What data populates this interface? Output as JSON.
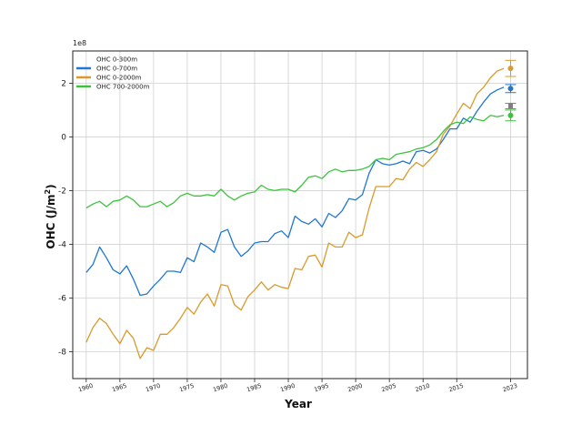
{
  "chart_data": {
    "type": "line",
    "title": "",
    "xlabel": "Year",
    "ylabel": "OHC (J/m²)",
    "ylabel_parts": {
      "main": "OHC (J/m",
      "sup": "2",
      "end": ")"
    },
    "y_multiplier": "1e8",
    "xlim": [
      1958,
      2025.5
    ],
    "ylim": [
      -9,
      3.2
    ],
    "x_ticks": [
      1960,
      1965,
      1970,
      1975,
      1980,
      1985,
      1990,
      1995,
      2000,
      2005,
      2010,
      2015,
      2023
    ],
    "y_ticks": [
      -8,
      -6,
      -4,
      -2,
      0,
      2
    ],
    "grid": true,
    "legend_position": "top-left",
    "series": [
      {
        "name": "OHC 0-300m",
        "color": "#7f7f7f",
        "x": [
          2023
        ],
        "y": [
          1.15
        ],
        "marker": {
          "x": 2023,
          "y": 1.15,
          "err": 0.1
        }
      },
      {
        "name": "OHC 0-700m",
        "color": "#1f77d0",
        "x": [
          1960,
          1961,
          1962,
          1963,
          1964,
          1965,
          1966,
          1967,
          1968,
          1969,
          1970,
          1971,
          1972,
          1973,
          1974,
          1975,
          1976,
          1977,
          1978,
          1979,
          1980,
          1981,
          1982,
          1983,
          1984,
          1985,
          1986,
          1987,
          1988,
          1989,
          1990,
          1991,
          1992,
          1993,
          1994,
          1995,
          1996,
          1997,
          1998,
          1999,
          2000,
          2001,
          2002,
          2003,
          2004,
          2005,
          2006,
          2007,
          2008,
          2009,
          2010,
          2011,
          2012,
          2013,
          2014,
          2015,
          2016,
          2017,
          2018,
          2019,
          2020,
          2021,
          2022
        ],
        "y": [
          -5.05,
          -4.75,
          -4.1,
          -4.5,
          -4.95,
          -5.1,
          -4.8,
          -5.3,
          -5.9,
          -5.85,
          -5.55,
          -5.3,
          -5.0,
          -5.0,
          -5.05,
          -4.5,
          -4.65,
          -3.95,
          -4.1,
          -4.3,
          -3.55,
          -3.45,
          -4.1,
          -4.45,
          -4.25,
          -3.95,
          -3.9,
          -3.9,
          -3.6,
          -3.5,
          -3.75,
          -2.95,
          -3.15,
          -3.25,
          -3.05,
          -3.35,
          -2.85,
          -3.0,
          -2.75,
          -2.3,
          -2.35,
          -2.15,
          -1.35,
          -0.85,
          -1.0,
          -1.05,
          -1.0,
          -0.9,
          -1.0,
          -0.55,
          -0.5,
          -0.6,
          -0.45,
          -0.1,
          0.3,
          0.3,
          0.7,
          0.55,
          0.95,
          1.3,
          1.6,
          1.75,
          1.85
        ],
        "marker": {
          "x": 2023,
          "y": 1.8,
          "err": 0.15
        }
      },
      {
        "name": "OHC 0-2000m",
        "color": "#d99a2b",
        "x": [
          1960,
          1961,
          1962,
          1963,
          1964,
          1965,
          1966,
          1967,
          1968,
          1969,
          1970,
          1971,
          1972,
          1973,
          1974,
          1975,
          1976,
          1977,
          1978,
          1979,
          1980,
          1981,
          1982,
          1983,
          1984,
          1985,
          1986,
          1987,
          1988,
          1989,
          1990,
          1991,
          1992,
          1993,
          1994,
          1995,
          1996,
          1997,
          1998,
          1999,
          2000,
          2001,
          2002,
          2003,
          2004,
          2005,
          2006,
          2007,
          2008,
          2009,
          2010,
          2011,
          2012,
          2013,
          2014,
          2015,
          2016,
          2017,
          2018,
          2019,
          2020,
          2021,
          2022
        ],
        "y": [
          -7.65,
          -7.1,
          -6.75,
          -6.95,
          -7.35,
          -7.7,
          -7.2,
          -7.5,
          -8.25,
          -7.85,
          -7.95,
          -7.35,
          -7.35,
          -7.1,
          -6.75,
          -6.35,
          -6.6,
          -6.15,
          -5.85,
          -6.3,
          -5.5,
          -5.55,
          -6.25,
          -6.45,
          -5.95,
          -5.7,
          -5.4,
          -5.7,
          -5.5,
          -5.6,
          -5.65,
          -4.9,
          -4.95,
          -4.45,
          -4.4,
          -4.85,
          -3.95,
          -4.1,
          -4.1,
          -3.55,
          -3.75,
          -3.65,
          -2.65,
          -1.85,
          -1.85,
          -1.85,
          -1.55,
          -1.6,
          -1.2,
          -0.95,
          -1.1,
          -0.85,
          -0.55,
          0.1,
          0.4,
          0.85,
          1.25,
          1.05,
          1.6,
          1.85,
          2.2,
          2.45,
          2.55
        ],
        "marker": {
          "x": 2023,
          "y": 2.55,
          "err": 0.3
        }
      },
      {
        "name": "OHC 700-2000m",
        "color": "#3cc23c",
        "x": [
          1960,
          1961,
          1962,
          1963,
          1964,
          1965,
          1966,
          1967,
          1968,
          1969,
          1970,
          1971,
          1972,
          1973,
          1974,
          1975,
          1976,
          1977,
          1978,
          1979,
          1980,
          1981,
          1982,
          1983,
          1984,
          1985,
          1986,
          1987,
          1988,
          1989,
          1990,
          1991,
          1992,
          1993,
          1994,
          1995,
          1996,
          1997,
          1998,
          1999,
          2000,
          2001,
          2002,
          2003,
          2004,
          2005,
          2006,
          2007,
          2008,
          2009,
          2010,
          2011,
          2012,
          2013,
          2014,
          2015,
          2016,
          2017,
          2018,
          2019,
          2020,
          2021,
          2022
        ],
        "y": [
          -2.65,
          -2.5,
          -2.4,
          -2.6,
          -2.4,
          -2.35,
          -2.2,
          -2.35,
          -2.6,
          -2.6,
          -2.5,
          -2.4,
          -2.6,
          -2.45,
          -2.2,
          -2.1,
          -2.2,
          -2.2,
          -2.15,
          -2.2,
          -1.95,
          -2.2,
          -2.35,
          -2.2,
          -2.1,
          -2.05,
          -1.8,
          -1.95,
          -2.0,
          -1.95,
          -1.95,
          -2.05,
          -1.8,
          -1.5,
          -1.45,
          -1.55,
          -1.3,
          -1.2,
          -1.3,
          -1.25,
          -1.25,
          -1.2,
          -1.1,
          -0.85,
          -0.8,
          -0.85,
          -0.65,
          -0.6,
          -0.55,
          -0.45,
          -0.4,
          -0.3,
          -0.1,
          0.2,
          0.45,
          0.55,
          0.5,
          0.75,
          0.65,
          0.6,
          0.8,
          0.75,
          0.8
        ],
        "marker": {
          "x": 2023,
          "y": 0.8,
          "err": 0.2
        }
      }
    ]
  }
}
